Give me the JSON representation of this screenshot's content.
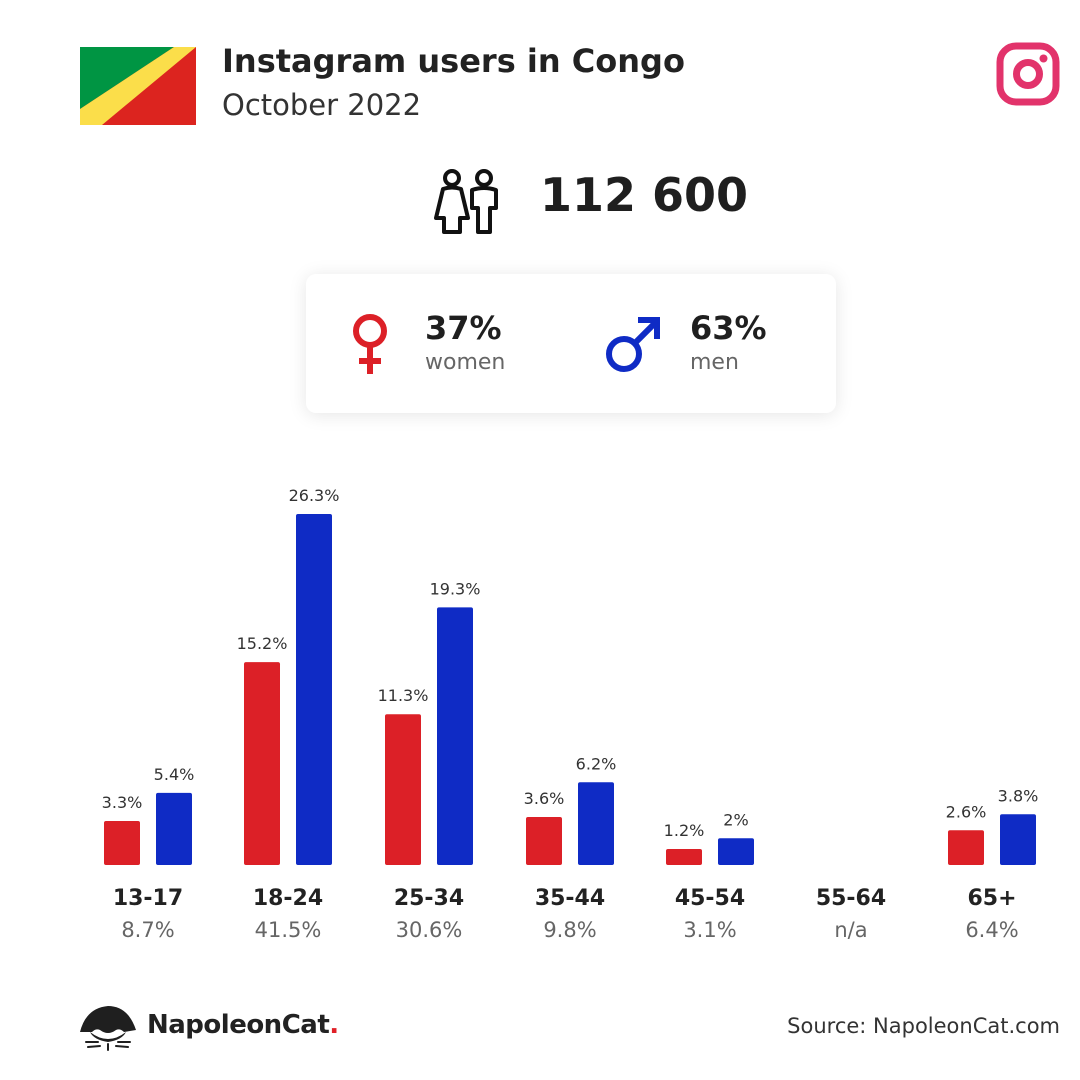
{
  "header": {
    "title": "Instagram users in Congo",
    "subtitle": "October 2022",
    "flag_icon": "congo-flag-icon",
    "platform_icon": "instagram-icon"
  },
  "total": {
    "icon": "users-icon",
    "value": "112 600"
  },
  "gender": {
    "women": {
      "percent": "37%",
      "label": "women",
      "icon": "female-icon",
      "color": "#dc2027"
    },
    "men": {
      "percent": "63%",
      "label": "men",
      "icon": "male-icon",
      "color": "#0f2bc5"
    }
  },
  "chart_data": {
    "type": "bar",
    "categories": [
      "13-17",
      "18-24",
      "25-34",
      "35-44",
      "45-54",
      "55-64",
      "65+"
    ],
    "category_totals": [
      "8.7%",
      "41.5%",
      "30.6%",
      "9.8%",
      "3.1%",
      "n/a",
      "6.4%"
    ],
    "series": [
      {
        "name": "women",
        "color": "#dc2027",
        "values": [
          3.3,
          15.2,
          11.3,
          3.6,
          1.2,
          null,
          2.6
        ],
        "labels": [
          "3.3%",
          "15.2%",
          "11.3%",
          "3.6%",
          "1.2%",
          "",
          "2.6%"
        ]
      },
      {
        "name": "men",
        "color": "#0f2bc5",
        "values": [
          5.4,
          26.3,
          19.3,
          6.2,
          2,
          null,
          3.8
        ],
        "labels": [
          "5.4%",
          "26.3%",
          "19.3%",
          "6.2%",
          "2%",
          "",
          "3.8%"
        ]
      }
    ],
    "ylim": [
      0,
      26.3
    ],
    "grid": false,
    "legend": "none"
  },
  "footer": {
    "brand_name": "NapoleonCat",
    "brand_dot": ".",
    "brand_icon": "napoleoncat-logo-icon",
    "source": "Source: NapoleonCat.com"
  }
}
